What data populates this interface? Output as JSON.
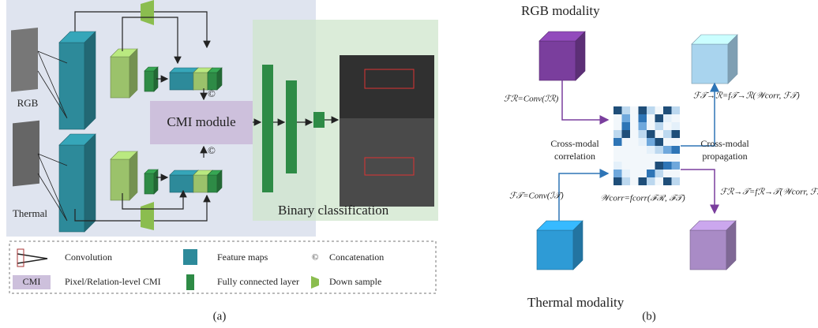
{
  "panel_a": {
    "rgb_label": "RGB",
    "thermal_label": "Thermal",
    "cmi_module": "CMI module",
    "concat_top": "©",
    "concat_bottom": "©",
    "binary_classification": "Binary classification",
    "legend": {
      "convolution": "Convolution",
      "feature_maps": "Feature maps",
      "concatenation_symbol": "©",
      "concatenation": "Concatenation",
      "cmi_box": "CMI",
      "cmi": "Pixel/Relation-level CMI",
      "fully_connected": "Fully connected layer",
      "down_sample": "Down sample"
    },
    "caption": "(a)"
  },
  "panel_b": {
    "rgb_modality": "RGB modality",
    "thermal_modality": "Thermal modality",
    "f_r": "ℱℛ=Conv(ℐℛ)",
    "f_t": "ℱ𝒯=Conv(ℐ𝒯)",
    "correlation": [
      "Cross-modal",
      "correlation"
    ],
    "propagation": [
      "Cross-modal",
      "propagation"
    ],
    "w_corr": "𝒲corr=fcorr(ℱℛ, ℱ𝒯)",
    "f_t_to_r": "ℱ𝒯→ℛ=f𝒯→ℛ(𝒲corr, ℱ𝒯)",
    "f_r_to_t": "ℱℛ→𝒯=fℛ→𝒯(𝒲corr, ℱℛ)",
    "caption": "(b)"
  }
}
